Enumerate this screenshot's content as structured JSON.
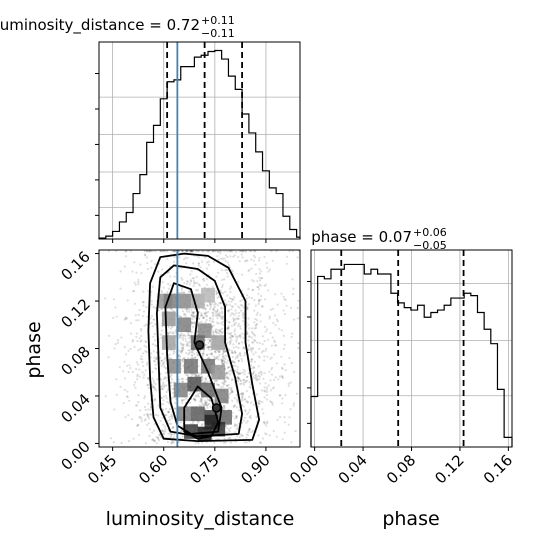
{
  "chart_data": [
    {
      "type": "histogram",
      "parameter": "luminosity_distance",
      "title": {
        "base": "luminosity_distance = 0.72",
        "sup": "+0.11",
        "sub": "−0.11"
      },
      "range": [
        0.41,
        1.0
      ],
      "quantiles": [
        0.61,
        0.72,
        0.83
      ],
      "truth": 0.64,
      "bin_edges": [
        0.41,
        0.43,
        0.45,
        0.47,
        0.49,
        0.51,
        0.53,
        0.55,
        0.57,
        0.59,
        0.61,
        0.63,
        0.65,
        0.67,
        0.69,
        0.71,
        0.73,
        0.75,
        0.77,
        0.79,
        0.81,
        0.83,
        0.85,
        0.87,
        0.89,
        0.91,
        0.93,
        0.95,
        0.97,
        0.99,
        1.0
      ],
      "counts": [
        0.5,
        1.5,
        4.0,
        9.0,
        14.0,
        24.0,
        34.0,
        51.0,
        60.0,
        74.0,
        83.0,
        84.0,
        91.0,
        91.0,
        96.0,
        97.0,
        99.0,
        99.5,
        95.0,
        86.0,
        79.0,
        66.0,
        56.0,
        46.0,
        36.0,
        27.0,
        24.0,
        12.0,
        5.0,
        1.0
      ],
      "ymax": 104,
      "xticks": [],
      "grid": true
    },
    {
      "type": "histogram",
      "parameter": "phase",
      "title": {
        "base": "phase = 0.07",
        "sup": "+0.06",
        "sub": "−0.05"
      },
      "range": [
        -0.003,
        0.163
      ],
      "quantiles": [
        0.022,
        0.069,
        0.123
      ],
      "bin_edges": [
        -0.003,
        0.0025,
        0.008,
        0.0135,
        0.019,
        0.0245,
        0.03,
        0.0355,
        0.041,
        0.0465,
        0.052,
        0.0575,
        0.063,
        0.0685,
        0.074,
        0.0795,
        0.085,
        0.0905,
        0.096,
        0.1015,
        0.107,
        0.1125,
        0.118,
        0.1235,
        0.129,
        0.1345,
        0.14,
        0.1455,
        0.151,
        0.1565,
        0.163
      ],
      "counts": [
        21,
        71,
        70,
        74,
        74,
        76,
        76,
        76,
        72,
        74,
        72,
        72,
        64,
        60,
        58,
        57,
        59,
        54,
        56,
        57,
        59,
        62,
        62,
        64,
        63,
        56,
        49,
        43,
        24,
        4
      ],
      "ymax": 82,
      "xticks": [
        0.0,
        0.04,
        0.08,
        0.12,
        0.16
      ],
      "xtick_labels": [
        "0.00",
        "0.04",
        "0.08",
        "0.12",
        "0.16"
      ],
      "xlabel": "phase",
      "grid": true
    },
    {
      "type": "scatter_density_contour",
      "x_parameter": "luminosity_distance",
      "y_parameter": "phase",
      "xlim": [
        0.41,
        1.0
      ],
      "ylim": [
        -0.003,
        0.163
      ],
      "xticks": [
        0.45,
        0.6,
        0.75,
        0.9
      ],
      "xtick_labels": [
        "0.45",
        "0.60",
        "0.75",
        "0.90"
      ],
      "yticks": [
        0.0,
        0.04,
        0.08,
        0.12,
        0.16
      ],
      "ytick_labels": [
        "0.00",
        "0.04",
        "0.08",
        "0.12",
        "0.16"
      ],
      "xlabel": "luminosity_distance",
      "ylabel": "phase",
      "truth_x": 0.64,
      "density_cells": [
        {
          "x": 0.605,
          "y": 0.12,
          "v": 0.35
        },
        {
          "x": 0.62,
          "y": 0.12,
          "v": 0.45
        },
        {
          "x": 0.66,
          "y": 0.12,
          "v": 0.4
        },
        {
          "x": 0.7,
          "y": 0.12,
          "v": 0.25
        },
        {
          "x": 0.73,
          "y": 0.125,
          "v": 0.2
        },
        {
          "x": 0.615,
          "y": 0.105,
          "v": 0.35
        },
        {
          "x": 0.66,
          "y": 0.1,
          "v": 0.45
        },
        {
          "x": 0.72,
          "y": 0.095,
          "v": 0.4
        },
        {
          "x": 0.7,
          "y": 0.085,
          "v": 0.55
        },
        {
          "x": 0.615,
          "y": 0.085,
          "v": 0.3
        },
        {
          "x": 0.76,
          "y": 0.085,
          "v": 0.3
        },
        {
          "x": 0.63,
          "y": 0.065,
          "v": 0.4
        },
        {
          "x": 0.68,
          "y": 0.065,
          "v": 0.5
        },
        {
          "x": 0.73,
          "y": 0.065,
          "v": 0.5
        },
        {
          "x": 0.76,
          "y": 0.06,
          "v": 0.35
        },
        {
          "x": 0.65,
          "y": 0.045,
          "v": 0.45
        },
        {
          "x": 0.69,
          "y": 0.05,
          "v": 0.65
        },
        {
          "x": 0.73,
          "y": 0.045,
          "v": 0.55
        },
        {
          "x": 0.77,
          "y": 0.04,
          "v": 0.45
        },
        {
          "x": 0.66,
          "y": 0.025,
          "v": 0.45
        },
        {
          "x": 0.7,
          "y": 0.025,
          "v": 0.6
        },
        {
          "x": 0.74,
          "y": 0.022,
          "v": 0.7
        },
        {
          "x": 0.78,
          "y": 0.022,
          "v": 0.55
        },
        {
          "x": 0.68,
          "y": 0.01,
          "v": 0.75
        },
        {
          "x": 0.72,
          "y": 0.008,
          "v": 0.9
        },
        {
          "x": 0.76,
          "y": 0.012,
          "v": 0.8
        },
        {
          "x": 0.74,
          "y": 0.018,
          "v": 0.85
        }
      ],
      "contours": [
        [
          [
            0.57,
            0.022
          ],
          [
            0.56,
            0.055
          ],
          [
            0.555,
            0.095
          ],
          [
            0.56,
            0.135
          ],
          [
            0.59,
            0.157
          ],
          [
            0.66,
            0.16
          ],
          [
            0.73,
            0.158
          ],
          [
            0.79,
            0.148
          ],
          [
            0.84,
            0.12
          ],
          [
            0.84,
            0.085
          ],
          [
            0.86,
            0.05
          ],
          [
            0.88,
            0.02
          ],
          [
            0.86,
            0.003
          ],
          [
            0.7,
            0.002
          ],
          [
            0.6,
            0.004
          ]
        ],
        [
          [
            0.59,
            0.03
          ],
          [
            0.585,
            0.07
          ],
          [
            0.58,
            0.11
          ],
          [
            0.59,
            0.14
          ],
          [
            0.63,
            0.15
          ],
          [
            0.7,
            0.147
          ],
          [
            0.75,
            0.137
          ],
          [
            0.78,
            0.115
          ],
          [
            0.78,
            0.085
          ],
          [
            0.81,
            0.055
          ],
          [
            0.83,
            0.025
          ],
          [
            0.82,
            0.008
          ],
          [
            0.7,
            0.006
          ],
          [
            0.62,
            0.01
          ]
        ],
        [
          [
            0.62,
            0.035
          ],
          [
            0.61,
            0.075
          ],
          [
            0.605,
            0.115
          ],
          [
            0.63,
            0.135
          ],
          [
            0.68,
            0.13
          ],
          [
            0.7,
            0.11
          ],
          [
            0.69,
            0.085
          ],
          [
            0.73,
            0.06
          ],
          [
            0.77,
            0.03
          ],
          [
            0.76,
            0.01
          ],
          [
            0.68,
            0.008
          ],
          [
            0.64,
            0.015
          ]
        ],
        [
          [
            0.66,
            0.01
          ],
          [
            0.66,
            0.03
          ],
          [
            0.7,
            0.048
          ],
          [
            0.74,
            0.038
          ],
          [
            0.76,
            0.018
          ],
          [
            0.74,
            0.006
          ],
          [
            0.7,
            0.004
          ]
        ]
      ],
      "small_contours": [
        {
          "x": 0.705,
          "y": 0.083
        },
        {
          "x": 0.755,
          "y": 0.03
        }
      ],
      "scatter_n": 2600
    }
  ]
}
